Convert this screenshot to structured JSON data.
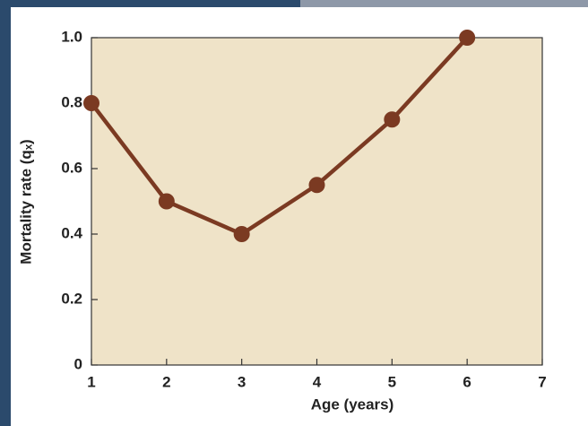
{
  "chart_data": {
    "type": "line",
    "x_label": "Age (years)",
    "y_label": "Mortality rate (qₓ)",
    "x": [
      1,
      2,
      3,
      4,
      5,
      6
    ],
    "series": [
      {
        "color": "#7b3a22",
        "values": [
          0.8,
          0.5,
          0.4,
          0.55,
          0.75,
          1
        ]
      }
    ],
    "xlim": [
      1,
      7
    ],
    "xticks": [
      1,
      2,
      3,
      4,
      5,
      6,
      7
    ],
    "ylim": [
      0,
      1
    ],
    "yticks": [
      0,
      0.2,
      0.4,
      0.6,
      0.8,
      {
        "value": 1,
        "label": "1.0"
      }
    ],
    "plot_background": "#efe3c8"
  }
}
